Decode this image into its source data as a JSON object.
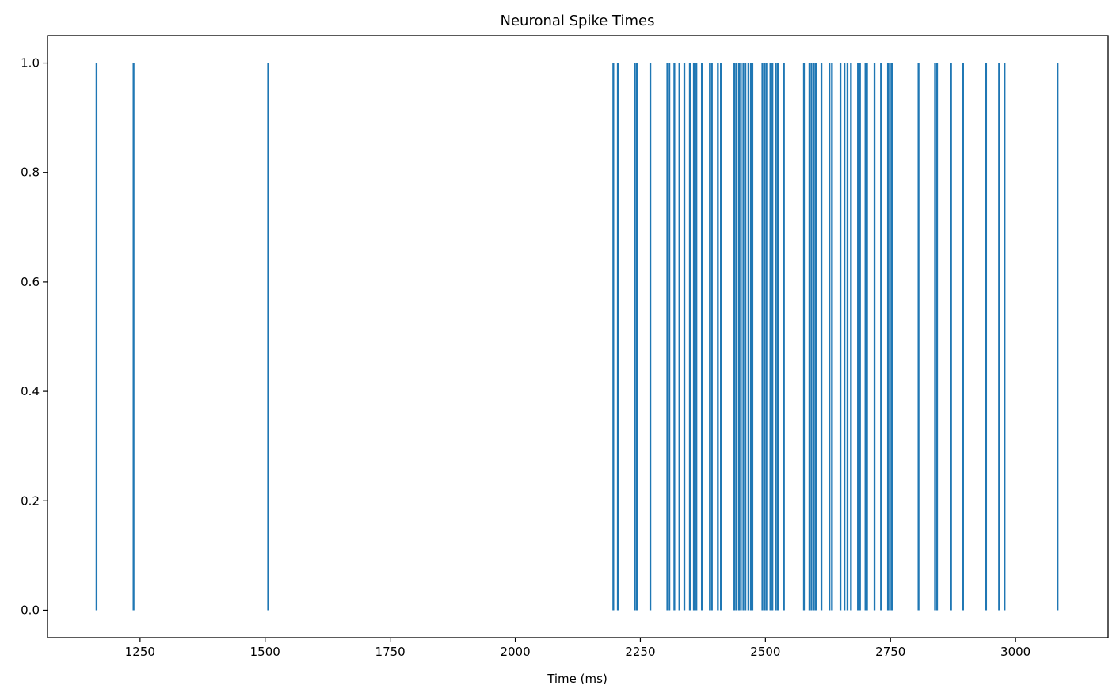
{
  "chart_data": {
    "type": "eventplot",
    "title": "Neuronal Spike Times",
    "xlabel": "Time (ms)",
    "ylabel": "",
    "xlim": [
      1065,
      3185
    ],
    "ylim": [
      -0.05,
      1.05
    ],
    "x_ticks": [
      1250,
      1500,
      1750,
      2000,
      2250,
      2500,
      2750,
      3000
    ],
    "y_ticks": [
      0.0,
      0.2,
      0.4,
      0.6,
      0.8,
      1.0
    ],
    "y_tick_labels": [
      "0.0",
      "0.2",
      "0.4",
      "0.6",
      "0.8",
      "1.0"
    ],
    "line_color": "#1f77b4",
    "grid": false,
    "legend": "none",
    "series": [
      {
        "spike_range": [
          0,
          1
        ],
        "spike_times": [
          1163,
          1237,
          1506,
          2196,
          2205,
          2239,
          2243,
          2270,
          2304,
          2308,
          2318,
          2328,
          2338,
          2349,
          2357,
          2362,
          2373,
          2389,
          2393,
          2405,
          2411,
          2438,
          2442,
          2447,
          2451,
          2456,
          2460,
          2466,
          2471,
          2474,
          2494,
          2498,
          2502,
          2510,
          2514,
          2521,
          2525,
          2537,
          2577,
          2588,
          2592,
          2597,
          2601,
          2612,
          2628,
          2633,
          2650,
          2658,
          2664,
          2671,
          2685,
          2689,
          2700,
          2703,
          2718,
          2731,
          2745,
          2749,
          2753,
          2806,
          2839,
          2843,
          2871,
          2895,
          2941,
          2967,
          2978,
          3084
        ]
      }
    ]
  }
}
